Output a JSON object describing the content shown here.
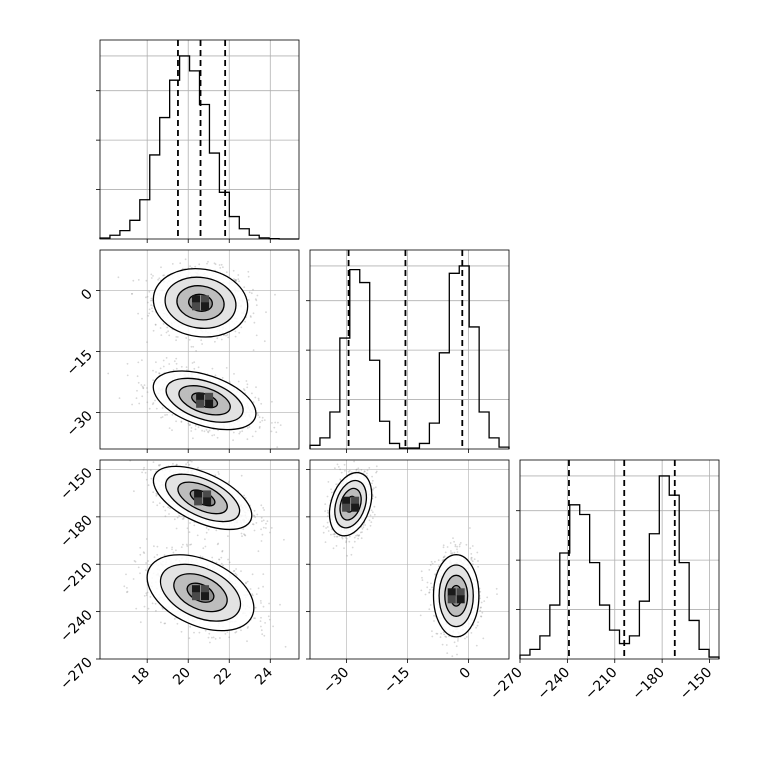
{
  "chart_data": {
    "type": "corner",
    "title": "",
    "parameters": [
      {
        "index": 0,
        "label": "",
        "range": [
          15.7,
          25.4
        ],
        "ticks": [
          18,
          20,
          22,
          24
        ],
        "tick_labels": [
          "18",
          "20",
          "22",
          "24"
        ],
        "quantiles": [
          19.5,
          20.6,
          21.8
        ],
        "histogram": {
          "bin_edges": [
            15.7,
            16.185,
            16.67,
            17.155,
            17.64,
            18.125,
            18.61,
            19.095,
            19.58,
            20.065,
            20.55,
            21.035,
            21.52,
            22.005,
            22.49,
            22.975,
            23.46,
            23.945,
            24.43,
            24.915,
            25.4
          ],
          "heights": [
            0.005,
            0.02,
            0.045,
            0.1,
            0.21,
            0.45,
            0.65,
            0.85,
            0.98,
            0.9,
            0.72,
            0.46,
            0.25,
            0.12,
            0.055,
            0.02,
            0.006,
            0.002,
            0,
            0
          ]
        }
      },
      {
        "index": 1,
        "label": "",
        "range": [
          -39,
          10
        ],
        "ticks": [
          -30,
          -15,
          0
        ],
        "tick_labels": [
          "−30",
          "−15",
          "0"
        ],
        "quantiles": [
          -29.5,
          -15.5,
          -1.5
        ],
        "histogram": {
          "bin_edges": [
            -39,
            -36.55,
            -34.1,
            -31.65,
            -29.2,
            -26.75,
            -24.3,
            -21.85,
            -19.4,
            -16.95,
            -14.5,
            -12.05,
            -9.6,
            -7.15,
            -4.7,
            -2.25,
            0.2,
            2.65,
            5.1,
            7.55,
            10
          ],
          "heights": [
            0.02,
            0.06,
            0.2,
            0.6,
            0.97,
            0.9,
            0.48,
            0.15,
            0.03,
            0.005,
            0.005,
            0.03,
            0.14,
            0.52,
            0.95,
            0.99,
            0.66,
            0.2,
            0.06,
            0.01
          ]
        }
      },
      {
        "index": 2,
        "label": "",
        "range": [
          -270,
          -144
        ],
        "ticks": [
          -270,
          -240,
          -210,
          -180,
          -150
        ],
        "tick_labels": [
          "−270",
          "−240",
          "−210",
          "−180",
          "−150"
        ],
        "quantiles": [
          -239,
          -204,
          -172
        ],
        "histogram": {
          "bin_edges": [
            -270,
            -263.7,
            -257.4,
            -251.1,
            -244.8,
            -238.5,
            -232.2,
            -225.9,
            -219.6,
            -213.3,
            -207,
            -200.7,
            -194.4,
            -188.1,
            -181.8,
            -175.5,
            -169.2,
            -162.9,
            -156.6,
            -150.3,
            -144
          ],
          "heights": [
            0.02,
            0.05,
            0.12,
            0.28,
            0.55,
            0.8,
            0.75,
            0.5,
            0.28,
            0.15,
            0.08,
            0.12,
            0.3,
            0.65,
            0.95,
            0.85,
            0.5,
            0.2,
            0.05,
            0.01
          ]
        }
      }
    ],
    "pairs": [
      {
        "x": 0,
        "y": 1,
        "modes": [
          {
            "mean": [
              20.6,
              -3
            ],
            "sx": 1.15,
            "sy": 4.2,
            "rho": -0.1,
            "weight": 0.5
          },
          {
            "mean": [
              20.8,
              -27
            ],
            "sx": 1.25,
            "sy": 3.6,
            "rho": -0.45,
            "weight": 0.5
          }
        ],
        "contour_levels_sigma": [
          0.5,
          1.0,
          1.5,
          2.0
        ]
      },
      {
        "x": 0,
        "y": 2,
        "modes": [
          {
            "mean": [
              20.7,
              -168
            ],
            "sx": 1.2,
            "sy": 10,
            "rho": -0.55,
            "weight": 0.5
          },
          {
            "mean": [
              20.6,
              -228
            ],
            "sx": 1.3,
            "sy": 12,
            "rho": -0.4,
            "weight": 0.5
          }
        ],
        "contour_levels_sigma": [
          0.5,
          1.0,
          1.5,
          2.0
        ]
      },
      {
        "x": 1,
        "y": 2,
        "modes": [
          {
            "mean": [
              -29,
              -172
            ],
            "sx": 2.6,
            "sy": 10,
            "rho": 0.3,
            "weight": 0.5
          },
          {
            "mean": [
              -3,
              -230
            ],
            "sx": 2.8,
            "sy": 13,
            "rho": 0,
            "weight": 0.5
          }
        ],
        "contour_levels_sigma": [
          0.5,
          1.0,
          1.5,
          2.0
        ]
      }
    ],
    "grid": true,
    "colors": {
      "line": "#000000",
      "scatter": "#8c8c8c",
      "grid": "#b0b0b0",
      "density": "#000000"
    }
  }
}
